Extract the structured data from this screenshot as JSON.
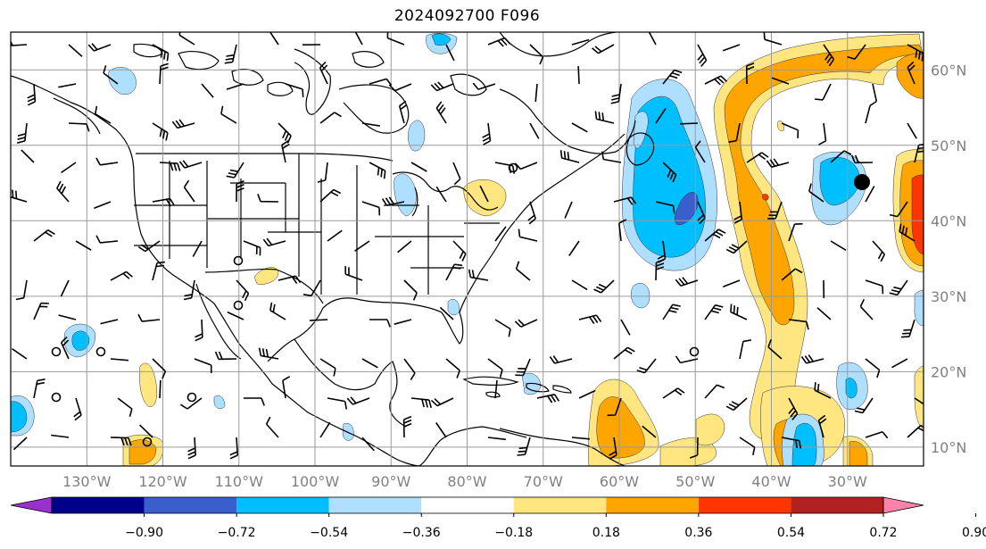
{
  "title": "2024092700 F096",
  "map": {
    "lon_range": [
      -140,
      -20
    ],
    "lat_range": [
      7.5,
      65
    ],
    "lon_ticks": [
      -130,
      -120,
      -110,
      -100,
      -90,
      -80,
      -70,
      -60,
      -50,
      -40,
      -30
    ],
    "lon_labels": [
      "130°W",
      "120°W",
      "110°W",
      "100°W",
      "90°W",
      "80°W",
      "70°W",
      "60°W",
      "50°W",
      "40°W",
      "30°W"
    ],
    "lat_ticks": [
      10,
      20,
      30,
      40,
      50,
      60
    ],
    "lat_labels": [
      "10°N",
      "20°N",
      "30°N",
      "40°N",
      "50°N",
      "60°N"
    ],
    "grid": true,
    "label_color": "#808080"
  },
  "colorbar": {
    "levels": [
      "−0.90",
      "−0.72",
      "−0.54",
      "−0.36",
      "−0.18",
      "0.18",
      "0.36",
      "0.54",
      "0.72",
      "0.90"
    ],
    "colors": [
      "#9932cc",
      "#00008b",
      "#3a5fcd",
      "#00bfff",
      "#afdfff",
      "#ffffff",
      "#ffe680",
      "#ffa500",
      "#ff3500",
      "#b22222",
      "#ff82ab"
    ],
    "extend": "both"
  },
  "colors": {
    "neg_light": "#afdfff",
    "neg_mid": "#00bfff",
    "neg_strong": "#3a5fcd",
    "pos_light": "#ffe680",
    "pos_mid": "#ffa500",
    "pos_strong": "#ff3500",
    "marker": "#000000"
  }
}
